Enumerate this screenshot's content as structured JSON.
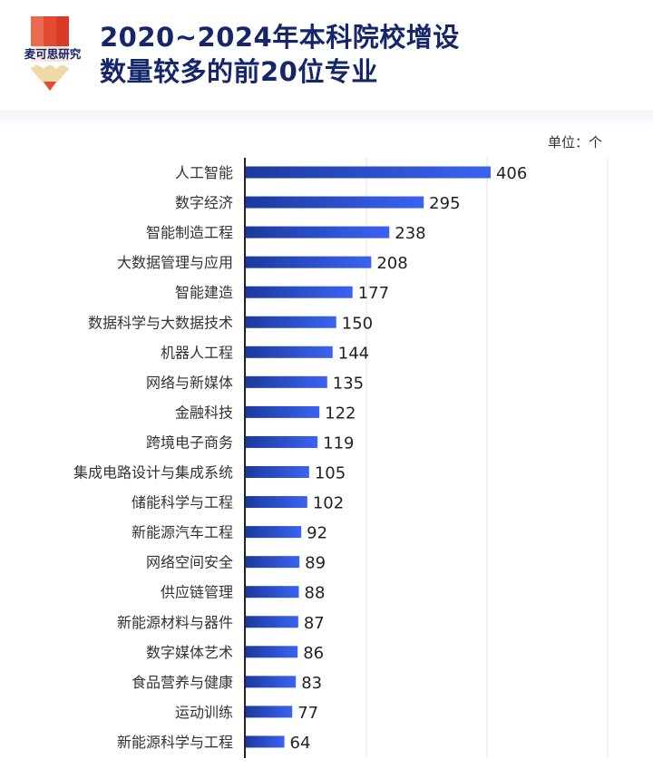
{
  "logo_text": "麦可思研究",
  "title_line1": "2020~2024年本科院校增设",
  "title_line2": "数量较多的前20位专业",
  "unit_label": "单位：个",
  "chart_data": {
    "type": "bar",
    "orientation": "horizontal",
    "title": "2020~2024年本科院校增设数量较多的前20位专业",
    "unit": "个",
    "xlim": [
      0,
      600
    ],
    "grid": true,
    "categories": [
      "人工智能",
      "数字经济",
      "智能制造工程",
      "大数据管理与应用",
      "智能建造",
      "数据科学与大数据技术",
      "机器人工程",
      "网络与新媒体",
      "金融科技",
      "跨境电子商务",
      "集成电路设计与集成系统",
      "储能科学与工程",
      "新能源汽车工程",
      "网络空间安全",
      "供应链管理",
      "新能源材料与器件",
      "数字媒体艺术",
      "食品营养与健康",
      "运动训练",
      "新能源科学与工程"
    ],
    "values": [
      406,
      295,
      238,
      208,
      177,
      150,
      144,
      135,
      122,
      119,
      105,
      102,
      92,
      89,
      88,
      87,
      86,
      83,
      77,
      64
    ],
    "bar_color_start": "#1b3a9e",
    "bar_color_end": "#3b63f2"
  }
}
